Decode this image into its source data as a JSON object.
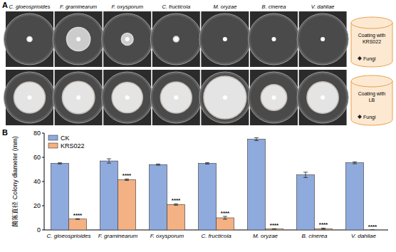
{
  "panel_a": {
    "label": "A",
    "treatments": [
      "Coating with KRS022",
      "Coating with LB"
    ],
    "inoculum": "Fungi"
  },
  "panel_b": {
    "label": "B"
  },
  "chart_data": {
    "type": "bar",
    "y_label": "菌落直径 Colony diameter (mm)",
    "categories": [
      "C. gloeosprioides",
      "F. graminearum",
      "F. oxysporum",
      "C. fructicola",
      "M. oryzae",
      "B. cinerea",
      "V. dahliae"
    ],
    "series": [
      {
        "name": "CK",
        "color": "#8faadc",
        "values": [
          55,
          57,
          54,
          55,
          75,
          45.5,
          55.5
        ],
        "errors": [
          0.5,
          1.8,
          0.5,
          0.6,
          1.2,
          2.2,
          0.8
        ]
      },
      {
        "name": "KRS022",
        "color": "#f4b183",
        "values": [
          9,
          41.5,
          21,
          10,
          0.8,
          1,
          0
        ],
        "errors": [
          0.3,
          0.6,
          0.6,
          1.2,
          0.2,
          0.5,
          0
        ],
        "annotations": [
          "****",
          "****",
          "****",
          "****",
          "****",
          "****",
          "****"
        ]
      }
    ],
    "ylim": [
      0,
      80
    ],
    "yticks": [
      0,
      20,
      40,
      60,
      80
    ],
    "legend": "top-left",
    "grid": false
  }
}
